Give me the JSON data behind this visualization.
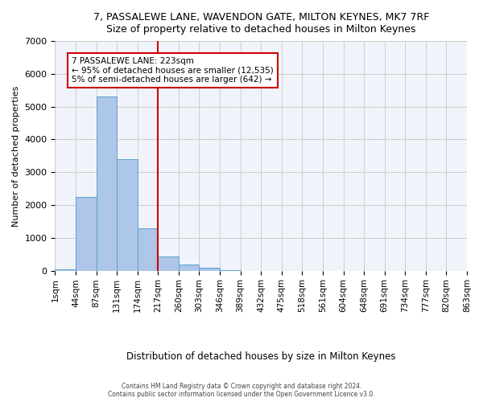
{
  "title1": "7, PASSALEWE LANE, WAVENDON GATE, MILTON KEYNES, MK7 7RF",
  "title2": "Size of property relative to detached houses in Milton Keynes",
  "xlabel": "Distribution of detached houses by size in Milton Keynes",
  "ylabel": "Number of detached properties",
  "footnote1": "Contains HM Land Registry data © Crown copyright and database right 2024.",
  "footnote2": "Contains public sector information licensed under the Open Government Licence v3.0.",
  "bin_labels": [
    "1sqm",
    "44sqm",
    "87sqm",
    "131sqm",
    "174sqm",
    "217sqm",
    "260sqm",
    "303sqm",
    "346sqm",
    "389sqm",
    "432sqm",
    "475sqm",
    "518sqm",
    "561sqm",
    "604sqm",
    "648sqm",
    "691sqm",
    "734sqm",
    "777sqm",
    "820sqm",
    "863sqm"
  ],
  "bar_values": [
    50,
    2250,
    5300,
    3400,
    1300,
    430,
    175,
    80,
    10,
    0,
    0,
    0,
    0,
    0,
    0,
    0,
    0,
    0,
    0,
    0
  ],
  "bar_color": "#aec6e8",
  "bar_edge_color": "#5a9fd4",
  "annotation_text_line1": "7 PASSALEWE LANE: 223sqm",
  "annotation_text_line2": "← 95% of detached houses are smaller (12,535)",
  "annotation_text_line3": "5% of semi-detached houses are larger (642) →",
  "vline_color": "#cc0000",
  "annotation_box_color": "#ffffff",
  "annotation_box_edge": "#cc0000",
  "ylim": [
    0,
    7000
  ],
  "background_color": "#f0f4fa"
}
